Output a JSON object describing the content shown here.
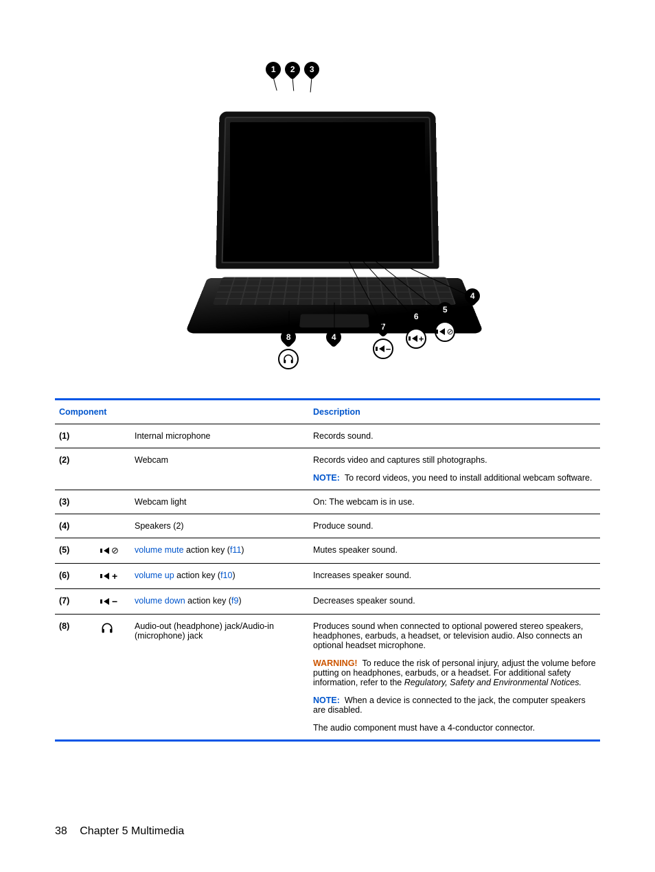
{
  "colors": {
    "link": "#0055cc",
    "warn": "#cc5500",
    "rule": "#0055e6",
    "text": "#000000",
    "background": "#ffffff"
  },
  "diagram": {
    "callouts": [
      "1",
      "2",
      "3",
      "4",
      "5",
      "6",
      "7",
      "8"
    ]
  },
  "table": {
    "headers": {
      "component": "Component",
      "description": "Description"
    },
    "rows": [
      {
        "num": "(1)",
        "icon": "",
        "component_plain": "Internal microphone",
        "desc": [
          {
            "type": "plain",
            "text": "Records sound."
          }
        ]
      },
      {
        "num": "(2)",
        "icon": "",
        "component_plain": "Webcam",
        "desc": [
          {
            "type": "plain",
            "text": "Records video and captures still photographs."
          },
          {
            "type": "note",
            "label": "NOTE:",
            "text": "To record videos, you need to install additional webcam software."
          }
        ]
      },
      {
        "num": "(3)",
        "icon": "",
        "component_plain": "Webcam light",
        "desc": [
          {
            "type": "plain",
            "text": "On: The webcam is in use."
          }
        ]
      },
      {
        "num": "(4)",
        "icon": "",
        "component_plain": "Speakers (2)",
        "desc": [
          {
            "type": "plain",
            "text": "Produce sound."
          }
        ]
      },
      {
        "num": "(5)",
        "icon": "mute",
        "component_parts": {
          "pre": "volume mute",
          "mid": " action key (",
          "key": "f11",
          "post": ")"
        },
        "desc": [
          {
            "type": "plain",
            "text": "Mutes speaker sound."
          }
        ]
      },
      {
        "num": "(6)",
        "icon": "volup",
        "component_parts": {
          "pre": "volume up",
          "mid": " action key (",
          "key": "f10",
          "post": ")"
        },
        "desc": [
          {
            "type": "plain",
            "text": "Increases speaker sound."
          }
        ]
      },
      {
        "num": "(7)",
        "icon": "voldown",
        "component_parts": {
          "pre": "volume down",
          "mid": " action key (",
          "key": "f9",
          "post": ")"
        },
        "desc": [
          {
            "type": "plain",
            "text": "Decreases speaker sound."
          }
        ]
      },
      {
        "num": "(8)",
        "icon": "headphone",
        "component_plain": "Audio-out (headphone) jack/Audio-in (microphone) jack",
        "desc": [
          {
            "type": "plain",
            "text": "Produces sound when connected to optional powered stereo speakers, headphones, earbuds, a headset, or television audio. Also connects an optional headset microphone."
          },
          {
            "type": "warn",
            "label": "WARNING!",
            "text": "To reduce the risk of personal injury, adjust the volume before putting on headphones, earbuds, or a headset. For additional safety information, refer to the ",
            "italic": "Regulatory, Safety and Environmental Notices."
          },
          {
            "type": "note",
            "label": "NOTE:",
            "text": "When a device is connected to the jack, the computer speakers are disabled."
          },
          {
            "type": "plain",
            "text": "The audio component must have a 4-conductor connector."
          }
        ]
      }
    ]
  },
  "footer": {
    "page": "38",
    "chapter": "Chapter 5   Multimedia"
  }
}
